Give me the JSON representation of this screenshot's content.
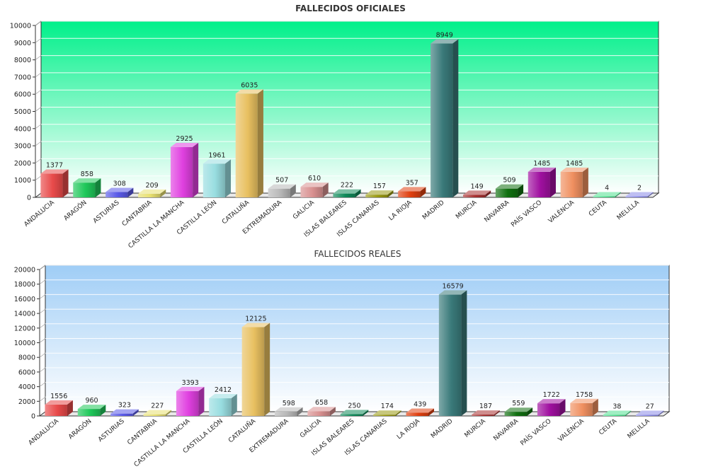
{
  "chart_data": [
    {
      "type": "bar",
      "title": "FALLECIDOS OFICIALES",
      "categories": [
        "ANDALUCIA",
        "ARAGÓN",
        "ASTURIAS",
        "CANTABRIA",
        "CASTILLA LA MANCHA",
        "CASTILLA LEÓN",
        "CATALUÑA",
        "EXTREMADURA",
        "GALICIA",
        "ISLAS BALEARES",
        "ISLAS CANARIAS",
        "LA RIOJA",
        "MADRID",
        "MURCIA",
        "NAVARRA",
        "PAÍS VASCO",
        "VALÈNCIA",
        "CEUTA",
        "MELILLA"
      ],
      "values": [
        1377,
        858,
        308,
        209,
        2925,
        1961,
        6035,
        507,
        610,
        222,
        157,
        357,
        8949,
        149,
        509,
        1485,
        1485,
        4,
        2
      ],
      "ylim": [
        0,
        10000
      ],
      "yticks": [
        0,
        1000,
        2000,
        3000,
        4000,
        5000,
        6000,
        7000,
        8000,
        9000,
        10000
      ],
      "grid": true,
      "background": {
        "top": "#00f08a",
        "bottom": "#ffffff"
      }
    },
    {
      "type": "bar",
      "title": "FALLECIDOS REALES",
      "categories": [
        "ANDALUCIA",
        "ARAGÓN",
        "ASTURIAS",
        "CANTABRIA",
        "CASTILLA LA MANCHA",
        "CASTILLA LEÓN",
        "CATALUÑA",
        "EXTREMADURA",
        "GALICIA",
        "ISLAS BALEARES",
        "ISLAS CANARIAS",
        "LA RIOJA",
        "MADRID",
        "MURCIA",
        "NAVARRA",
        "PAÍS VASCO",
        "VALÈNCIA",
        "CEUTA",
        "MELILLA"
      ],
      "values": [
        1556,
        960,
        323,
        227,
        3393,
        2412,
        12125,
        598,
        658,
        250,
        174,
        439,
        16579,
        187,
        559,
        1722,
        1758,
        38,
        27
      ],
      "ylim": [
        0,
        20000
      ],
      "yticks": [
        0,
        2000,
        4000,
        6000,
        8000,
        10000,
        12000,
        14000,
        16000,
        18000,
        20000
      ],
      "grid": true,
      "background": {
        "top": "#9fcdf6",
        "bottom": "#ffffff"
      }
    }
  ],
  "bar_colors": [
    "#e84a4a",
    "#1fc85a",
    "#5a5ae8",
    "#e8e070",
    "#e040e0",
    "#98dde0",
    "#e8c060",
    "#b8b8b8",
    "#d89090",
    "#108a5a",
    "#9a9a10",
    "#e04010",
    "#3a7a7a",
    "#a83030",
    "#107010",
    "#a010a0",
    "#f09060",
    "#50e090",
    "#8a8ae8"
  ]
}
